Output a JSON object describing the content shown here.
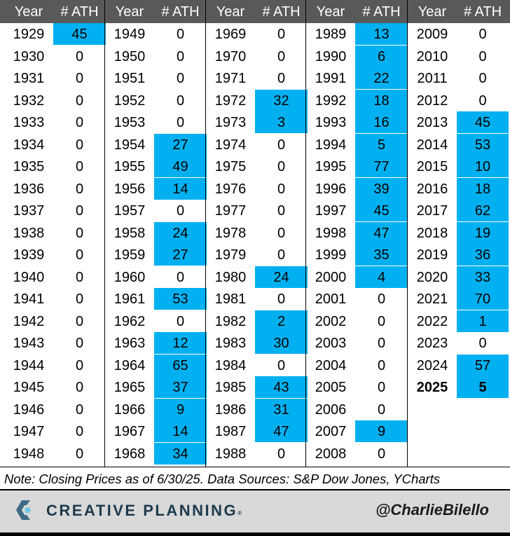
{
  "header": {
    "year_label": "Year",
    "value_label": "# ATH"
  },
  "colors": {
    "header_bg": "#595959",
    "highlight": "#00b0f0",
    "footer_bg": "#d9d9d9",
    "brand": "#1d3a4c"
  },
  "chart_data": {
    "type": "table",
    "columns": [
      "Year",
      "# ATH"
    ],
    "rows": [
      {
        "year": "1929",
        "value": "45"
      },
      {
        "year": "1930",
        "value": "0"
      },
      {
        "year": "1931",
        "value": "0"
      },
      {
        "year": "1932",
        "value": "0"
      },
      {
        "year": "1933",
        "value": "0"
      },
      {
        "year": "1934",
        "value": "0"
      },
      {
        "year": "1935",
        "value": "0"
      },
      {
        "year": "1936",
        "value": "0"
      },
      {
        "year": "1937",
        "value": "0"
      },
      {
        "year": "1938",
        "value": "0"
      },
      {
        "year": "1939",
        "value": "0"
      },
      {
        "year": "1940",
        "value": "0"
      },
      {
        "year": "1941",
        "value": "0"
      },
      {
        "year": "1942",
        "value": "0"
      },
      {
        "year": "1943",
        "value": "0"
      },
      {
        "year": "1944",
        "value": "0"
      },
      {
        "year": "1945",
        "value": "0"
      },
      {
        "year": "1946",
        "value": "0"
      },
      {
        "year": "1947",
        "value": "0"
      },
      {
        "year": "1948",
        "value": "0"
      },
      {
        "year": "1949",
        "value": "0"
      },
      {
        "year": "1950",
        "value": "0"
      },
      {
        "year": "1951",
        "value": "0"
      },
      {
        "year": "1952",
        "value": "0"
      },
      {
        "year": "1953",
        "value": "0"
      },
      {
        "year": "1954",
        "value": "27"
      },
      {
        "year": "1955",
        "value": "49"
      },
      {
        "year": "1956",
        "value": "14"
      },
      {
        "year": "1957",
        "value": "0"
      },
      {
        "year": "1958",
        "value": "24"
      },
      {
        "year": "1959",
        "value": "27"
      },
      {
        "year": "1960",
        "value": "0"
      },
      {
        "year": "1961",
        "value": "53"
      },
      {
        "year": "1962",
        "value": "0"
      },
      {
        "year": "1963",
        "value": "12"
      },
      {
        "year": "1964",
        "value": "65"
      },
      {
        "year": "1965",
        "value": "37"
      },
      {
        "year": "1966",
        "value": "9"
      },
      {
        "year": "1967",
        "value": "14"
      },
      {
        "year": "1968",
        "value": "34"
      },
      {
        "year": "1969",
        "value": "0"
      },
      {
        "year": "1970",
        "value": "0"
      },
      {
        "year": "1971",
        "value": "0"
      },
      {
        "year": "1972",
        "value": "32"
      },
      {
        "year": "1973",
        "value": "3"
      },
      {
        "year": "1974",
        "value": "0"
      },
      {
        "year": "1975",
        "value": "0"
      },
      {
        "year": "1976",
        "value": "0"
      },
      {
        "year": "1977",
        "value": "0"
      },
      {
        "year": "1978",
        "value": "0"
      },
      {
        "year": "1979",
        "value": "0"
      },
      {
        "year": "1980",
        "value": "24"
      },
      {
        "year": "1981",
        "value": "0"
      },
      {
        "year": "1982",
        "value": "2"
      },
      {
        "year": "1983",
        "value": "30"
      },
      {
        "year": "1984",
        "value": "0"
      },
      {
        "year": "1985",
        "value": "43"
      },
      {
        "year": "1986",
        "value": "31"
      },
      {
        "year": "1987",
        "value": "47"
      },
      {
        "year": "1988",
        "value": "0"
      },
      {
        "year": "1989",
        "value": "13"
      },
      {
        "year": "1990",
        "value": "6"
      },
      {
        "year": "1991",
        "value": "22"
      },
      {
        "year": "1992",
        "value": "18"
      },
      {
        "year": "1993",
        "value": "16"
      },
      {
        "year": "1994",
        "value": "5"
      },
      {
        "year": "1995",
        "value": "77"
      },
      {
        "year": "1996",
        "value": "39"
      },
      {
        "year": "1997",
        "value": "45"
      },
      {
        "year": "1998",
        "value": "47"
      },
      {
        "year": "1999",
        "value": "35"
      },
      {
        "year": "2000",
        "value": "4"
      },
      {
        "year": "2001",
        "value": "0"
      },
      {
        "year": "2002",
        "value": "0"
      },
      {
        "year": "2003",
        "value": "0"
      },
      {
        "year": "2004",
        "value": "0"
      },
      {
        "year": "2005",
        "value": "0"
      },
      {
        "year": "2006",
        "value": "0"
      },
      {
        "year": "2007",
        "value": "9"
      },
      {
        "year": "2008",
        "value": "0"
      },
      {
        "year": "2009",
        "value": "0"
      },
      {
        "year": "2010",
        "value": "0"
      },
      {
        "year": "2011",
        "value": "0"
      },
      {
        "year": "2012",
        "value": "0"
      },
      {
        "year": "2013",
        "value": "45"
      },
      {
        "year": "2014",
        "value": "53"
      },
      {
        "year": "2015",
        "value": "10"
      },
      {
        "year": "2016",
        "value": "18"
      },
      {
        "year": "2017",
        "value": "62"
      },
      {
        "year": "2018",
        "value": "19"
      },
      {
        "year": "2019",
        "value": "36"
      },
      {
        "year": "2020",
        "value": "33"
      },
      {
        "year": "2021",
        "value": "70"
      },
      {
        "year": "2022",
        "value": "1"
      },
      {
        "year": "2023",
        "value": "0"
      },
      {
        "year": "2024",
        "value": "57"
      },
      {
        "year": "2025",
        "value": "5",
        "bold": true
      }
    ]
  },
  "note": "Note: Closing Prices as of 6/30/25. Data Sources: S&P Dow Jones, YCharts",
  "footer": {
    "brand": "CREATIVE PLANNING",
    "brand_mark": "®",
    "brand_logo": "creative-planning-c-logo",
    "handle": "@CharlieBilello"
  }
}
